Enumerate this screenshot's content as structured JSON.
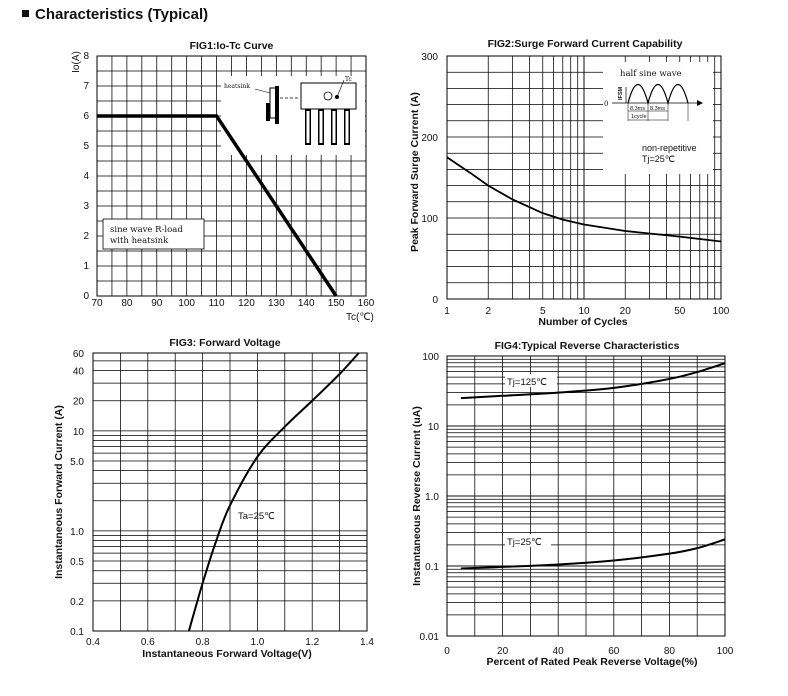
{
  "page": {
    "heading": "Characteristics (Typical)"
  },
  "chart_data": [
    {
      "id": "fig1",
      "type": "line",
      "title": "FIG1:Io-Tc Curve",
      "xlabel": "Tc(℃)",
      "ylabel": "Io(A)",
      "xlim": [
        70,
        160
      ],
      "ylim": [
        0,
        8
      ],
      "x_ticks": [
        "70",
        "80",
        "90",
        "100",
        "110",
        "120",
        "130",
        "140",
        "150",
        "160"
      ],
      "y_ticks": [
        "0",
        "1",
        "2",
        "3",
        "4",
        "5",
        "6",
        "7",
        "8"
      ],
      "series": [
        {
          "name": "Io",
          "x": [
            70,
            110,
            150
          ],
          "y": [
            6,
            6,
            0
          ]
        }
      ],
      "annotations": [
        "sine wave R-load",
        "with heatsink"
      ],
      "inset_labels": [
        "heatsink",
        "Tc"
      ]
    },
    {
      "id": "fig2",
      "type": "line",
      "title": "FIG2:Surge Forward Current Capability",
      "xlabel": "Number of Cycles",
      "ylabel": "Peak Forward Surge Current (A)",
      "xscale": "log",
      "xlim": [
        1,
        100
      ],
      "ylim": [
        0,
        300
      ],
      "x_ticks": [
        "1",
        "2",
        "5",
        "10",
        "20",
        "50",
        "100"
      ],
      "y_ticks": [
        "0",
        "100",
        "200",
        "300"
      ],
      "series": [
        {
          "name": "IFSM",
          "x": [
            1,
            1.5,
            2,
            3,
            5,
            7,
            10,
            20,
            50,
            100
          ],
          "y": [
            175,
            155,
            140,
            123,
            106,
            98,
            92,
            84,
            77,
            71
          ]
        }
      ],
      "annotations": [
        "non-repetitive",
        "Tj=25℃"
      ],
      "inset_labels": [
        "half sine wave",
        "IFSM",
        "0",
        "8.3ms",
        "8.3ms",
        "1cycle"
      ]
    },
    {
      "id": "fig3",
      "type": "line",
      "title": "FIG3: Forward Voltage",
      "xlabel": "Instantaneous Forward Voltage(V)",
      "ylabel": "Instantaneous Forward Current (A)",
      "yscale": "log",
      "xlim": [
        0.4,
        1.4
      ],
      "ylim": [
        0.1,
        60
      ],
      "x_ticks": [
        "0.4",
        "0.6",
        "0.8",
        "1.0",
        "1.2",
        "1.4"
      ],
      "y_ticks": [
        "0.1",
        "0.2",
        "0.5",
        "1.0",
        "5.0",
        "10",
        "20",
        "40",
        "60"
      ],
      "series": [
        {
          "name": "Ta=25℃",
          "x": [
            0.75,
            0.8,
            0.85,
            0.9,
            1.0,
            1.1,
            1.2,
            1.3,
            1.37
          ],
          "y": [
            0.1,
            0.3,
            0.8,
            1.8,
            5.5,
            11,
            20,
            37,
            60
          ]
        }
      ],
      "annotations": [
        "Ta=25℃"
      ]
    },
    {
      "id": "fig4",
      "type": "line",
      "title": "FIG4:Typical Reverse Characteristics",
      "xlabel": "Percent of Rated Peak Reverse Voltage(%)",
      "ylabel": "Instantaneous Reverse Current (uA)",
      "yscale": "log",
      "xlim": [
        0,
        100
      ],
      "ylim": [
        0.01,
        100
      ],
      "x_ticks": [
        "0",
        "20",
        "40",
        "60",
        "80",
        "100"
      ],
      "y_ticks": [
        "0.01",
        "0.1",
        "1.0",
        "10",
        "100"
      ],
      "series": [
        {
          "name": "Tj=125℃",
          "x": [
            5,
            20,
            40,
            60,
            80,
            90,
            100
          ],
          "y": [
            25,
            27,
            30,
            35,
            47,
            59,
            79
          ]
        },
        {
          "name": "Tj=25℃",
          "x": [
            5,
            20,
            40,
            60,
            80,
            90,
            100
          ],
          "y": [
            0.092,
            0.097,
            0.105,
            0.12,
            0.15,
            0.18,
            0.24
          ]
        }
      ],
      "annotations": [
        "Tj=125℃",
        "Tj=25℃"
      ]
    }
  ]
}
